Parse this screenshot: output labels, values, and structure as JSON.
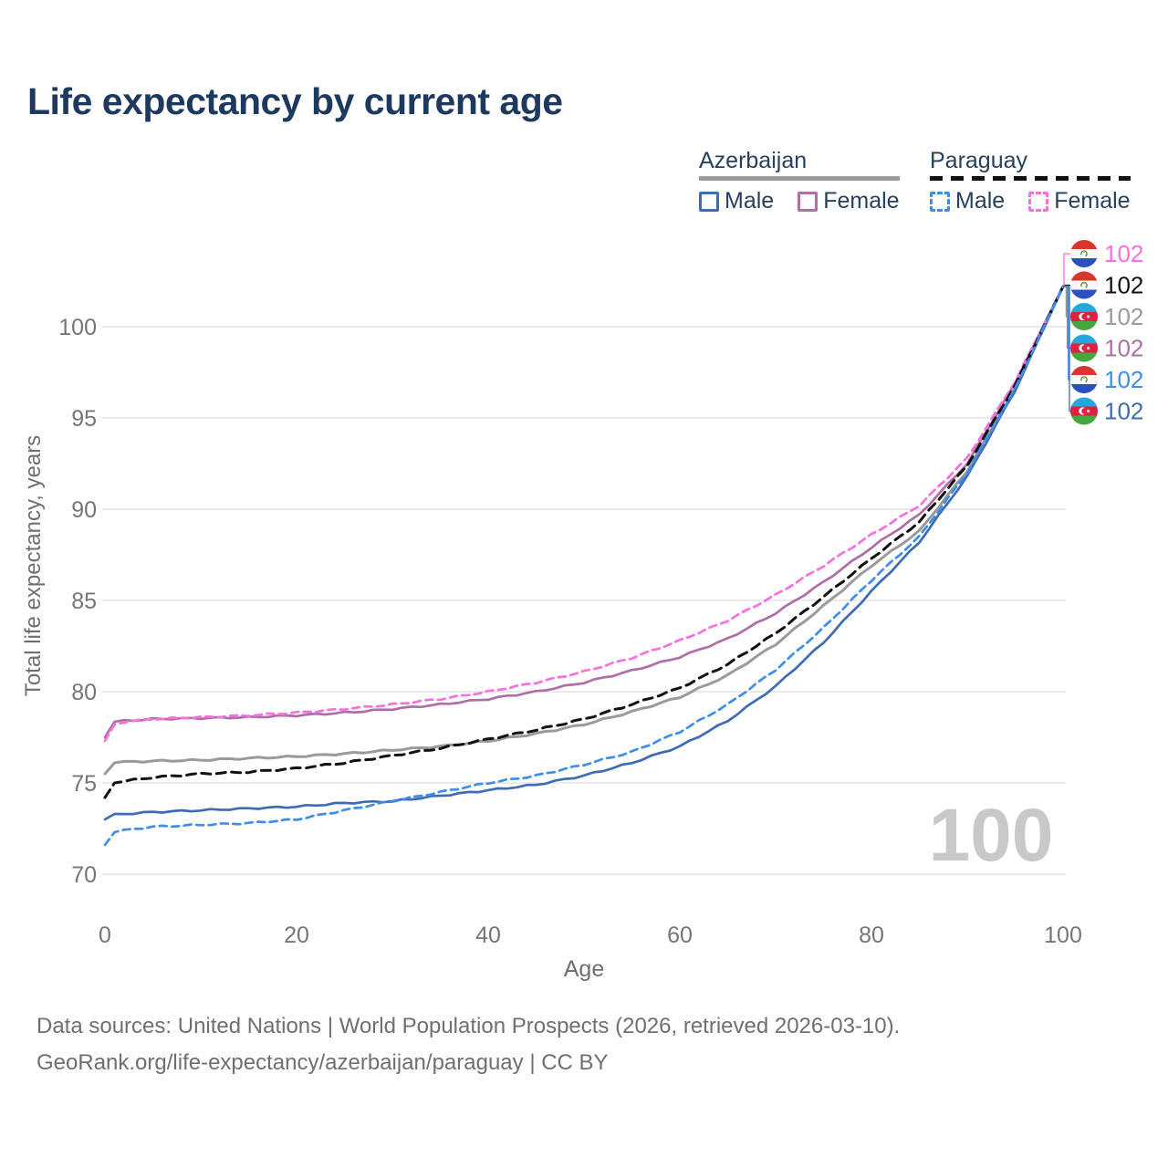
{
  "title": "Life expectancy by current age",
  "colors": {
    "title_text": "#1d3a5e",
    "legend_text": "#26415e",
    "azerbaijan_male": "#3e6cb3",
    "azerbaijan_female": "#ad6fa6",
    "azerbaijan_total": "#9a9a9a",
    "paraguay_male": "#3e8ee9",
    "paraguay_female": "#f671dc",
    "paraguay_total": "#111111",
    "gridline": "#e4e4e4",
    "tick_text": "#757575",
    "axis_title_text": "#6e6e6e",
    "watermark_text": "#c8c8c8",
    "footer_text": "#6f6f6f"
  },
  "legend": {
    "groups": [
      {
        "name": "Azerbaijan",
        "underline_style": "solid",
        "underline_color": "#9a9a9a",
        "items": [
          {
            "label": "Male",
            "color": "#3e6cb3",
            "dashed": false
          },
          {
            "label": "Female",
            "color": "#ad6fa6",
            "dashed": false
          }
        ]
      },
      {
        "name": "Paraguay",
        "underline_style": "dashed",
        "underline_color": "#111111",
        "items": [
          {
            "label": "Male",
            "color": "#3e8ee9",
            "dashed": true
          },
          {
            "label": "Female",
            "color": "#f671dc",
            "dashed": true
          }
        ]
      }
    ]
  },
  "watermark": "100",
  "footer": {
    "line1": "Data sources: United Nations | World Population Prospects (2026, retrieved 2026-03-10).",
    "line2": "GeoRank.org/life-expectancy/azerbaijan/paraguay | CC BY"
  },
  "chart_data": {
    "type": "line",
    "title": "Life expectancy by current age",
    "xlabel": "Age",
    "ylabel": "Total life expectancy, years",
    "xlim": [
      0,
      100
    ],
    "ylim": [
      68.5,
      103
    ],
    "x_ticks": [
      0,
      20,
      40,
      60,
      80,
      100
    ],
    "y_ticks": [
      70,
      75,
      80,
      85,
      90,
      95,
      100
    ],
    "grid": "horizontal",
    "legend_position": "top-right",
    "x": [
      0,
      1,
      2,
      5,
      10,
      15,
      20,
      25,
      30,
      35,
      40,
      45,
      50,
      55,
      60,
      65,
      70,
      75,
      80,
      85,
      90,
      95,
      100
    ],
    "series": [
      {
        "name": "Paraguay Female",
        "country": "Paraguay",
        "sex": "Female",
        "color": "#f671dc",
        "dashed": true,
        "end_label": "102",
        "values": [
          77.3,
          78.2,
          78.35,
          78.5,
          78.6,
          78.7,
          78.85,
          79.05,
          79.3,
          79.6,
          80.0,
          80.5,
          81.1,
          81.85,
          82.8,
          83.9,
          85.3,
          86.9,
          88.6,
          90.2,
          92.8,
          97.0,
          102.2
        ]
      },
      {
        "name": "Paraguay",
        "country": "Paraguay",
        "sex": "Both",
        "color": "#111111",
        "dashed": true,
        "end_label": "102",
        "values": [
          74.2,
          75.0,
          75.1,
          75.3,
          75.5,
          75.6,
          75.8,
          76.1,
          76.5,
          76.9,
          77.4,
          77.9,
          78.5,
          79.3,
          80.2,
          81.5,
          83.2,
          85.2,
          87.3,
          89.3,
          92.4,
          96.8,
          102.2
        ]
      },
      {
        "name": "Azerbaijan",
        "country": "Azerbaijan",
        "sex": "Both",
        "color": "#9a9a9a",
        "dashed": false,
        "end_label": "102",
        "values": [
          75.5,
          76.1,
          76.15,
          76.2,
          76.25,
          76.35,
          76.45,
          76.6,
          76.8,
          77.0,
          77.3,
          77.7,
          78.2,
          78.9,
          79.7,
          80.9,
          82.6,
          84.7,
          86.9,
          88.8,
          92.1,
          96.6,
          102.2
        ]
      },
      {
        "name": "Azerbaijan Female",
        "country": "Azerbaijan",
        "sex": "Female",
        "color": "#ad6fa6",
        "dashed": false,
        "end_label": "102",
        "values": [
          77.5,
          78.35,
          78.4,
          78.5,
          78.55,
          78.6,
          78.7,
          78.85,
          79.05,
          79.3,
          79.6,
          80.0,
          80.5,
          81.15,
          81.9,
          82.9,
          84.3,
          86.0,
          87.9,
          89.7,
          92.5,
          96.9,
          102.2
        ]
      },
      {
        "name": "Paraguay Male",
        "country": "Paraguay",
        "sex": "Male",
        "color": "#3e8ee9",
        "dashed": true,
        "end_label": "102",
        "values": [
          71.6,
          72.3,
          72.4,
          72.6,
          72.7,
          72.8,
          73.0,
          73.5,
          74.0,
          74.5,
          75.0,
          75.4,
          76.0,
          76.7,
          77.8,
          79.3,
          81.2,
          83.5,
          86.1,
          88.5,
          92.0,
          96.6,
          102.2
        ]
      },
      {
        "name": "Azerbaijan Male",
        "country": "Azerbaijan",
        "sex": "Male",
        "color": "#3e6cb3",
        "dashed": false,
        "end_label": "102",
        "values": [
          73.0,
          73.3,
          73.3,
          73.4,
          73.5,
          73.6,
          73.7,
          73.9,
          74.0,
          74.3,
          74.6,
          74.9,
          75.4,
          76.1,
          77.0,
          78.4,
          80.3,
          82.7,
          85.5,
          88.2,
          91.8,
          96.5,
          102.2
        ]
      }
    ]
  }
}
